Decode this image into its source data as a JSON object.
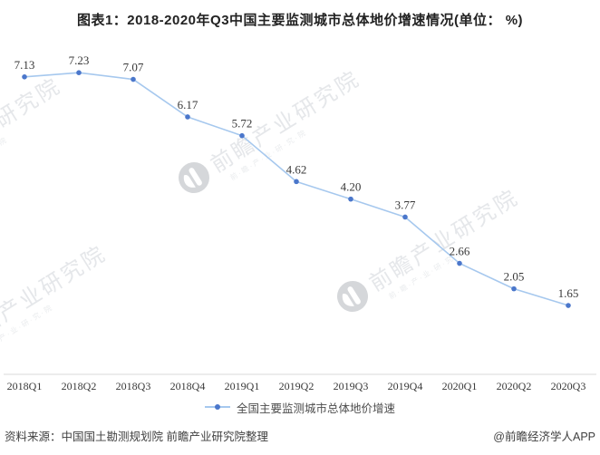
{
  "title": "图表1：2018-2020年Q3中国主要监测城市总体地价增速情况(单位： %)",
  "chart_data": {
    "type": "line",
    "categories": [
      "2018Q1",
      "2018Q2",
      "2018Q3",
      "2018Q4",
      "2019Q1",
      "2019Q2",
      "2019Q3",
      "2019Q4",
      "2020Q1",
      "2020Q2",
      "2020Q3"
    ],
    "series": [
      {
        "name": "全国主要监测城市总体地价增速",
        "values": [
          7.13,
          7.23,
          7.07,
          6.17,
          5.72,
          4.62,
          4.2,
          3.77,
          2.66,
          2.05,
          1.65
        ]
      }
    ],
    "title": "图表1：2018-2020年Q3中国主要监测城市总体地价增速情况(单位： %)",
    "xlabel": "",
    "ylabel": "",
    "unit": "%",
    "ylim": [
      0,
      7.56
    ],
    "grid": false,
    "data_labels": true,
    "legend_position": "bottom",
    "colors": {
      "line": "#a6c8ee",
      "marker": "#4b77cb",
      "value_label": "#383838",
      "tick_label": "#383838",
      "axis_line": "#d9d9d9"
    }
  },
  "legend": {
    "label": "全国主要监测城市总体地价增速"
  },
  "watermark": {
    "text": "前瞻产业研究院",
    "subtext": "前·瞻·产·业·研·究·院",
    "text_color": "#e5e7ea",
    "subtext_color": "#eaecee",
    "circle_color": "#d5d7da"
  },
  "footer": {
    "source": "资料来源：中国国土勘测规划院 前瞻产业研究院整理",
    "credit": "@前瞻经济学人APP"
  }
}
